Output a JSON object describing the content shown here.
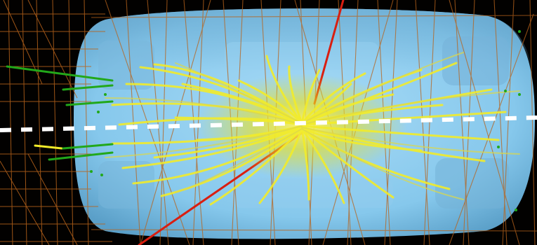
{
  "scene": {
    "background_color": "#020100",
    "detector_color": "#8fd0f2",
    "mesh_color": "#b8631b",
    "track_color": "#f2ec2a",
    "muon_track_color": "#d91e10",
    "forward_hit_color": "#22a81a",
    "beam_axis_color": "#ffffff"
  }
}
